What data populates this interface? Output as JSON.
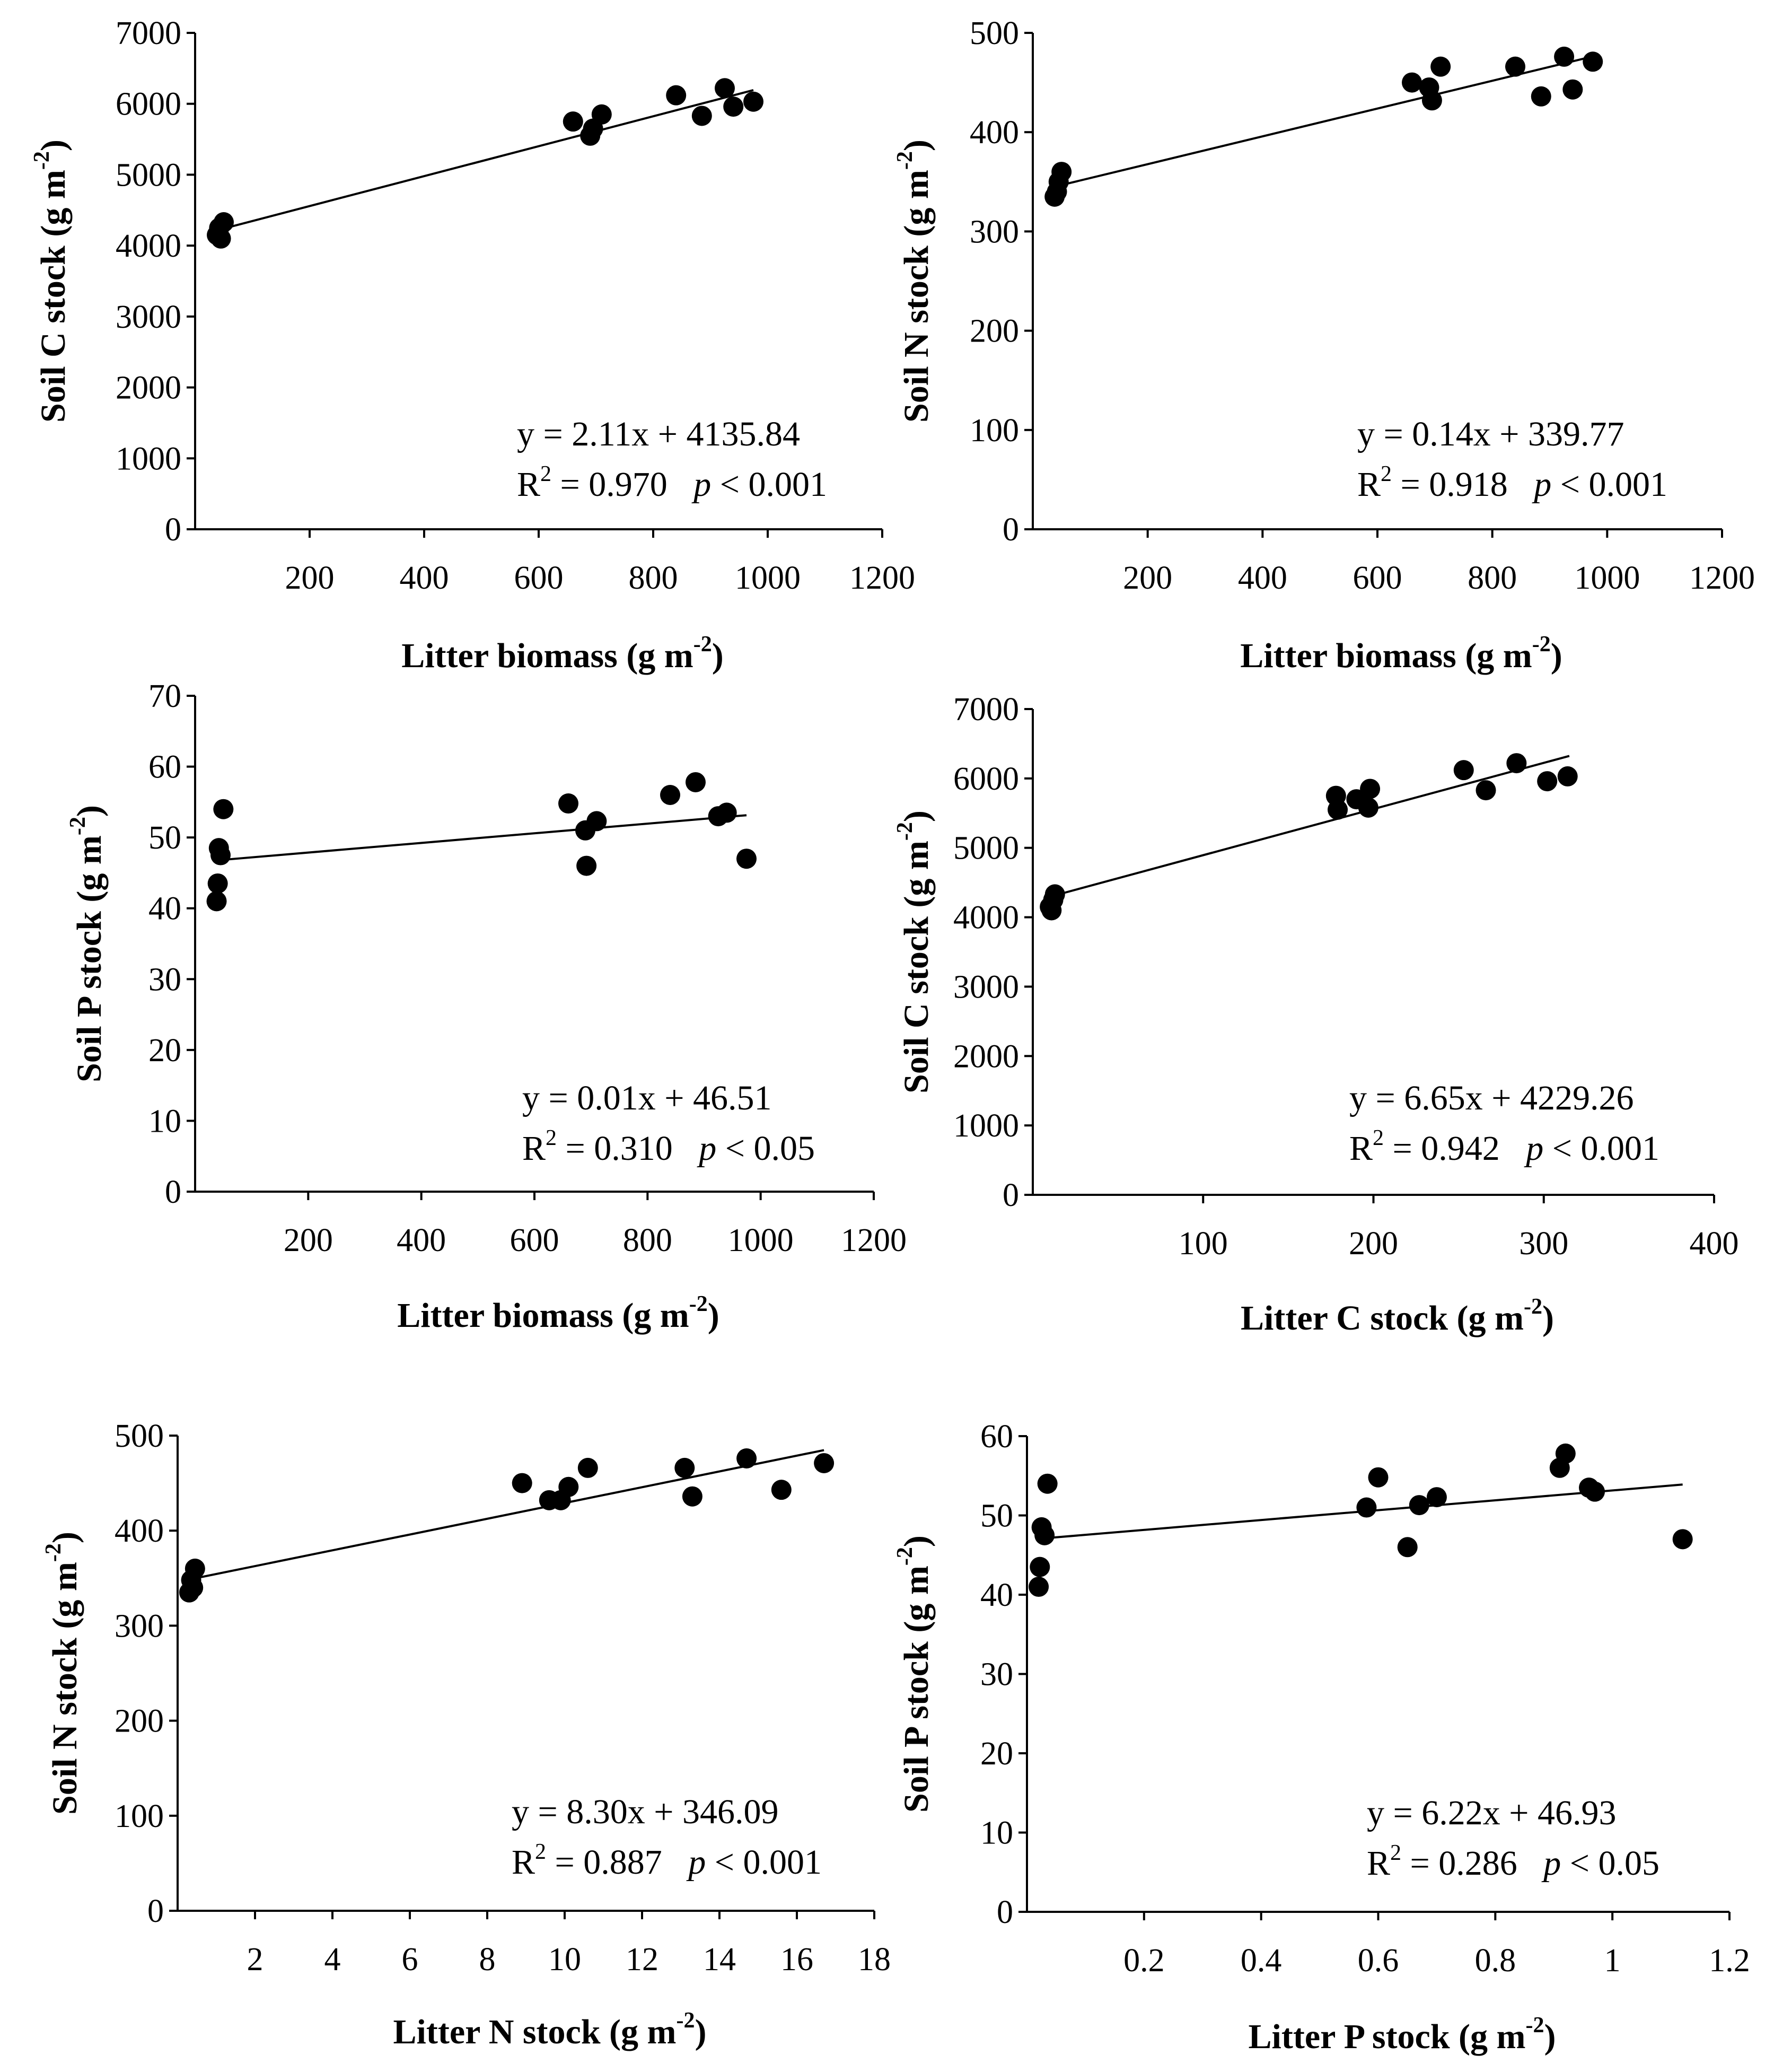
{
  "chart_data": [
    {
      "type": "scatter",
      "xlabel": "Litter biomass (g m-2)",
      "xlabel_main": "Litter biomass (g m",
      "xlabel_sup": "-2",
      "xlabel_close": ")",
      "ylabel": "Soil C stock (g m-2)",
      "ylabel_main": "Soil C stock (g m",
      "ylabel_sup": "-2",
      "ylabel_close": ")",
      "xlim": [
        0,
        1200
      ],
      "ylim": [
        0,
        7000
      ],
      "x_ticks": [
        200,
        400,
        600,
        800,
        1000,
        1200
      ],
      "y_ticks": [
        0,
        1000,
        2000,
        3000,
        4000,
        5000,
        6000,
        7000
      ],
      "equation": "y = 2.11x + 4135.84",
      "r2_label": "R",
      "r2_sup": "2",
      "r2_value": " = 0.970",
      "p_symbol": "p",
      "p_value": "< 0.001",
      "fit": {
        "slope": 2.11,
        "intercept": 4135.84,
        "x_range": [
          38,
          975
        ]
      },
      "x": [
        38,
        42,
        45,
        50,
        660,
        690,
        695,
        710,
        840,
        885,
        925,
        940,
        975
      ],
      "y": [
        4150,
        4250,
        4100,
        4330,
        5750,
        5550,
        5650,
        5850,
        6120,
        5830,
        6220,
        5960,
        6030
      ]
    },
    {
      "type": "scatter",
      "xlabel": "Litter biomass (g m-2)",
      "xlabel_main": "Litter biomass (g m",
      "xlabel_sup": "-2",
      "xlabel_close": ")",
      "ylabel": "Soil N stock (g m-2)",
      "ylabel_main": "Soil N stock (g m",
      "ylabel_sup": "-2",
      "ylabel_close": ")",
      "xlim": [
        0,
        1200
      ],
      "ylim": [
        0,
        500
      ],
      "x_ticks": [
        200,
        400,
        600,
        800,
        1000,
        1200
      ],
      "y_ticks": [
        0,
        100,
        200,
        300,
        400,
        500
      ],
      "equation": "y = 0.14x + 339.77",
      "r2_label": "R",
      "r2_sup": "2",
      "r2_value": " = 0.918",
      "p_symbol": "p",
      "p_value": "< 0.001",
      "fit": {
        "slope": 0.14,
        "intercept": 339.77,
        "x_range": [
          38,
          975
        ]
      },
      "x": [
        38,
        42,
        45,
        50,
        660,
        690,
        695,
        710,
        840,
        885,
        925,
        940,
        975
      ],
      "y": [
        335,
        340,
        350,
        360,
        450,
        445,
        432,
        466,
        466,
        436,
        476,
        443,
        471
      ]
    },
    {
      "type": "scatter",
      "xlabel": "Litter biomass (g m-2)",
      "xlabel_main": "Litter biomass (g m",
      "xlabel_sup": "-2",
      "xlabel_close": ")",
      "ylabel": "Soil P stock (g m-2)",
      "ylabel_main": "Soil P stock (g m",
      "ylabel_sup": "-2",
      "ylabel_close": ")",
      "xlim": [
        0,
        1200
      ],
      "ylim": [
        0,
        70
      ],
      "x_ticks": [
        200,
        400,
        600,
        800,
        1000,
        1200
      ],
      "y_ticks": [
        0,
        10,
        20,
        30,
        40,
        50,
        60,
        70
      ],
      "equation": "y = 0.01x + 46.51",
      "r2_label": "R",
      "r2_sup": "2",
      "r2_value": " = 0.310",
      "p_symbol": "p",
      "p_value": "<  0.05",
      "fit": {
        "slope": 0.0068,
        "intercept": 46.51,
        "x_range": [
          38,
          975
        ]
      },
      "x": [
        38,
        40,
        42,
        45,
        50,
        660,
        690,
        692,
        710,
        840,
        885,
        925,
        940,
        975
      ],
      "y": [
        41,
        43.5,
        48.5,
        47.5,
        54,
        54.8,
        51,
        46,
        52.3,
        56,
        57.8,
        53,
        53.5,
        47
      ]
    },
    {
      "type": "scatter",
      "xlabel": "Litter C stock (g m-2)",
      "xlabel_main": "Litter C stock (g m",
      "xlabel_sup": "-2",
      "xlabel_close": ")",
      "ylabel": "Soil C stock (g m-2)",
      "ylabel_main": "Soil C stock (g m",
      "ylabel_sup": "-2",
      "ylabel_close": ")",
      "xlim": [
        0,
        400
      ],
      "ylim": [
        0,
        7000
      ],
      "x_ticks": [
        100,
        200,
        300,
        400
      ],
      "y_ticks": [
        0,
        1000,
        2000,
        3000,
        4000,
        5000,
        6000,
        7000
      ],
      "equation": "y = 6.65x + 4229.26",
      "r2_label": "R",
      "r2_sup": "2",
      "r2_value": " = 0.942",
      "p_symbol": "p",
      "p_value": "< 0.001",
      "fit": {
        "slope": 6.65,
        "intercept": 4229.26,
        "x_range": [
          10,
          315
        ]
      },
      "x": [
        10,
        11,
        12,
        13,
        178,
        179,
        190,
        197,
        198,
        253,
        266,
        284,
        302,
        314
      ],
      "y": [
        4150,
        4100,
        4250,
        4330,
        5750,
        5550,
        5700,
        5580,
        5850,
        6120,
        5830,
        6220,
        5960,
        6030
      ]
    },
    {
      "type": "scatter",
      "xlabel": "Litter N stock (g m-2)",
      "xlabel_main": "Litter N stock (g m",
      "xlabel_sup": "-2",
      "xlabel_close": ")",
      "ylabel": "Soil N stock (g m-2)",
      "ylabel_main": "Soil N stock (g m",
      "ylabel_sup": "-2",
      "ylabel_close": ")",
      "xlim": [
        0,
        18
      ],
      "ylim": [
        0,
        500
      ],
      "x_ticks": [
        2,
        4,
        6,
        8,
        10,
        12,
        14,
        16,
        18
      ],
      "y_ticks": [
        0,
        100,
        200,
        300,
        400,
        500
      ],
      "equation": "y = 8.30x + 346.09",
      "r2_label": "R",
      "r2_sup": "2",
      "r2_value": " = 0.887",
      "p_symbol": "p",
      "p_value": "< 0.001",
      "fit": {
        "slope": 8.3,
        "intercept": 346.09,
        "x_range": [
          0.3,
          16.7
        ]
      },
      "x": [
        0.3,
        0.35,
        0.4,
        0.45,
        8.9,
        9.6,
        9.9,
        10.1,
        10.6,
        13.1,
        13.3,
        14.7,
        15.6,
        16.7
      ],
      "y": [
        335,
        348,
        340,
        360,
        450,
        432,
        432,
        446,
        466,
        466,
        436,
        476,
        443,
        471
      ]
    },
    {
      "type": "scatter",
      "xlabel": "Litter P stock (g m-2)",
      "xlabel_main": "Litter P stock (g m",
      "xlabel_sup": "-2",
      "xlabel_close": ")",
      "ylabel": "Soil P stock (g m-2)",
      "ylabel_main": "Soil P stock (g m",
      "ylabel_sup": "-2",
      "ylabel_close": ")",
      "xlim": [
        0,
        1.2
      ],
      "ylim": [
        0,
        60
      ],
      "x_ticks": [
        0.2,
        0.4,
        0.6,
        0.8,
        1.0,
        1.2
      ],
      "y_ticks": [
        0,
        10,
        20,
        30,
        40,
        50,
        60
      ],
      "equation": "y = 6.22x + 46.93",
      "r2_label": "R",
      "r2_sup": "2",
      "r2_value": " = 0.286",
      "p_symbol": "p",
      "p_value": "<  0.05",
      "fit": {
        "slope": 6.22,
        "intercept": 46.93,
        "x_range": [
          0.02,
          1.12
        ]
      },
      "x": [
        0.02,
        0.022,
        0.025,
        0.03,
        0.035,
        0.58,
        0.6,
        0.65,
        0.67,
        0.7,
        0.91,
        0.92,
        0.96,
        0.97,
        1.12
      ],
      "y": [
        41,
        43.5,
        48.5,
        47.5,
        54,
        51,
        54.8,
        46,
        51.3,
        52.3,
        56,
        57.8,
        53.5,
        53,
        47
      ]
    }
  ]
}
